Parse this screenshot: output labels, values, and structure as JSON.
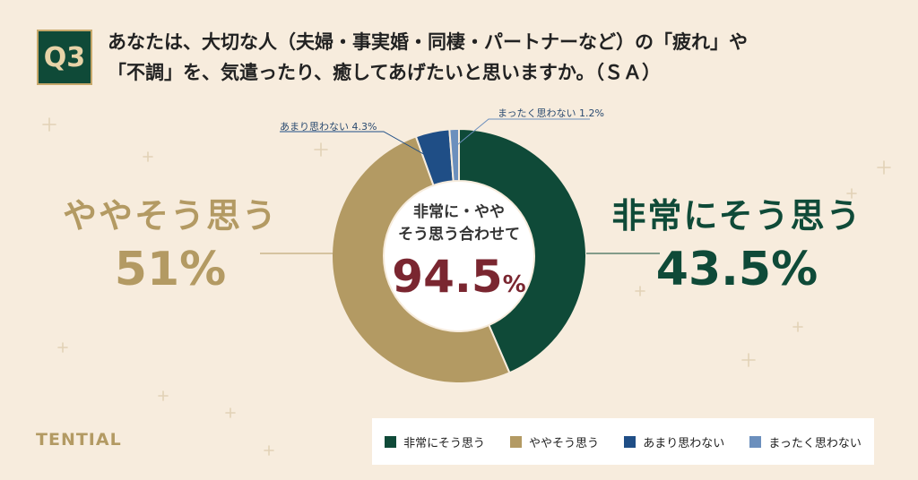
{
  "badge": "Q3",
  "question": {
    "line1": "あなたは、大切な人（夫婦・事実婚・同棲・パートナーなど）の「疲れ」や",
    "line2": "「不調」を、気遣ったり、癒してあげたいと思いますか。（ＳＡ）"
  },
  "brand": "TENTIAL",
  "center": {
    "line1": "非常に・やや",
    "line2": "そう思う合わせて",
    "total": "94.5",
    "unit": "%"
  },
  "callouts": {
    "left_name": "ややそう思う",
    "left_pct": "51%",
    "right_name": "非常にそう思う",
    "right_pct": "43.5%",
    "small1": "あまり思わない 4.3%",
    "small2": "まったく思わない 1.2%"
  },
  "chart_data": {
    "type": "pie",
    "categories": [
      "非常にそう思う",
      "ややそう思う",
      "あまり思わない",
      "まったく思わない"
    ],
    "values": [
      43.5,
      51,
      4.3,
      1.2
    ],
    "colors": [
      "#0f4a38",
      "#b39a63",
      "#1f4e86",
      "#6b8fbd"
    ],
    "donut": true,
    "legend_position": "bottom-right"
  }
}
